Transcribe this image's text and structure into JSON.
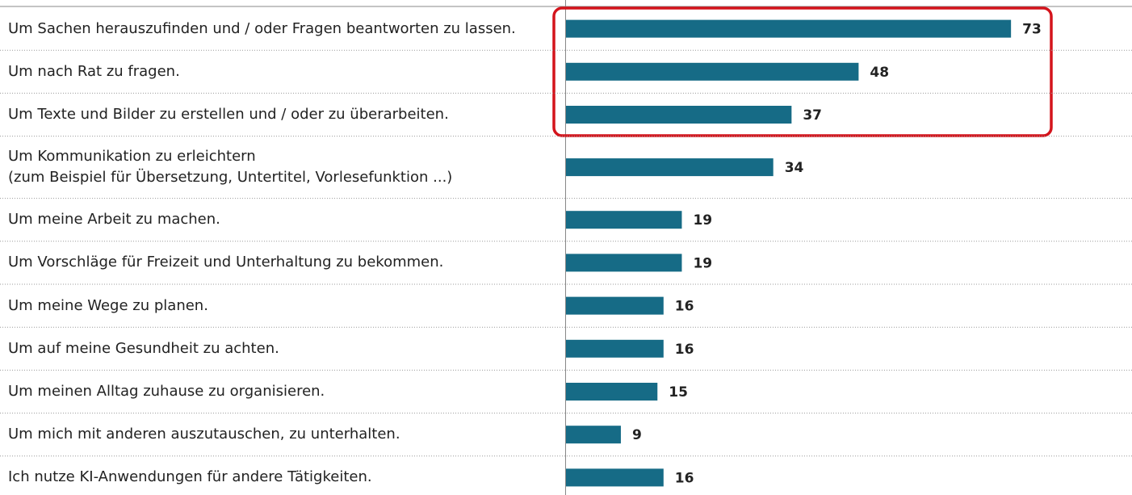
{
  "chart_data": {
    "type": "bar",
    "orientation": "horizontal",
    "categories": [
      "Um Sachen herauszufinden und / oder Fragen beantworten zu lassen.",
      "Um nach Rat zu fragen.",
      "Um Texte und Bilder zu erstellen und / oder zu überarbeiten.",
      "Um Kommunikation zu erleichtern\n(zum Beispiel für Übersetzung, Untertitel, Vorlesefunktion ...)",
      "Um meine Arbeit zu machen.",
      "Um Vorschläge für Freizeit und Unterhaltung zu bekommen.",
      "Um meine Wege zu planen.",
      "Um auf meine Gesundheit zu achten.",
      "Um meinen Alltag zuhause zu organisieren.",
      "Um mich mit anderen auszutauschen, zu unterhalten.",
      "Ich nutze KI-Anwendungen für andere Tätigkeiten."
    ],
    "values": [
      73,
      48,
      37,
      34,
      19,
      19,
      16,
      16,
      15,
      9,
      16
    ],
    "color": "#166b86"
  }
}
